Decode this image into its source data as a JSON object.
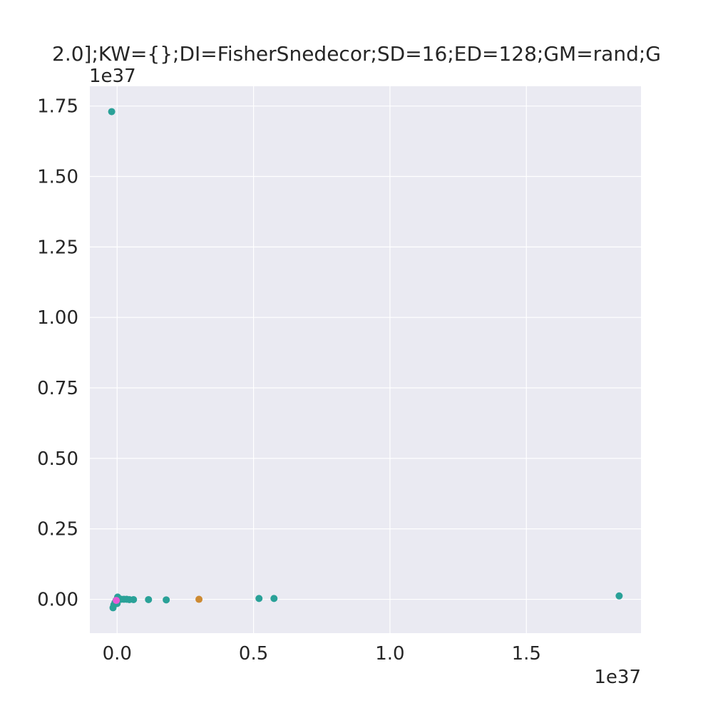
{
  "chart_data": {
    "type": "scatter",
    "title": "2.0];KW={};DI=FisherSnedecor;SD=16;ED=128;GM=rand;G",
    "xlabel": "",
    "ylabel": "",
    "x_offset_label": "1e37",
    "y_offset_label": "1e37",
    "xlim": [
      -0.1,
      1.92
    ],
    "ylim": [
      -0.12,
      1.82
    ],
    "xticks": [
      0.0,
      0.5,
      1.0,
      1.5
    ],
    "xtick_labels": [
      "0.0",
      "0.5",
      "1.0",
      "1.5"
    ],
    "yticks": [
      0.0,
      0.25,
      0.5,
      0.75,
      1.0,
      1.25,
      1.5,
      1.75
    ],
    "ytick_labels": [
      "0.00",
      "0.25",
      "0.50",
      "0.75",
      "1.00",
      "1.25",
      "1.50",
      "1.75"
    ],
    "grid": true,
    "legend": "none",
    "colors": {
      "background": "#eaeaf2",
      "grid": "#ffffff",
      "teal": "#2aa198",
      "orange": "#cd8a32",
      "magenta": "#e75ad8"
    },
    "series": [
      {
        "color": "#2aa198",
        "points": [
          [
            -0.02,
            1.73
          ],
          [
            1.84,
            0.012
          ],
          [
            0.52,
            0.003
          ],
          [
            0.575,
            0.003
          ],
          [
            0.18,
            -0.002
          ],
          [
            0.115,
            -0.001
          ],
          [
            0.06,
            -0.001
          ],
          [
            0.045,
            -0.001
          ],
          [
            0.035,
            0.0
          ],
          [
            0.025,
            0.0
          ],
          [
            0.015,
            0.0
          ],
          [
            0.008,
            0.0
          ],
          [
            0.002,
            0.008
          ],
          [
            -0.004,
            -0.004
          ],
          [
            -0.008,
            -0.012
          ],
          [
            -0.012,
            -0.02
          ],
          [
            -0.015,
            -0.03
          ],
          [
            0.0,
            -0.015
          ]
        ]
      },
      {
        "color": "#cd8a32",
        "points": [
          [
            0.3,
            0.0
          ]
        ]
      },
      {
        "color": "#e75ad8",
        "points": [
          [
            -0.003,
            -0.004
          ]
        ]
      }
    ]
  }
}
